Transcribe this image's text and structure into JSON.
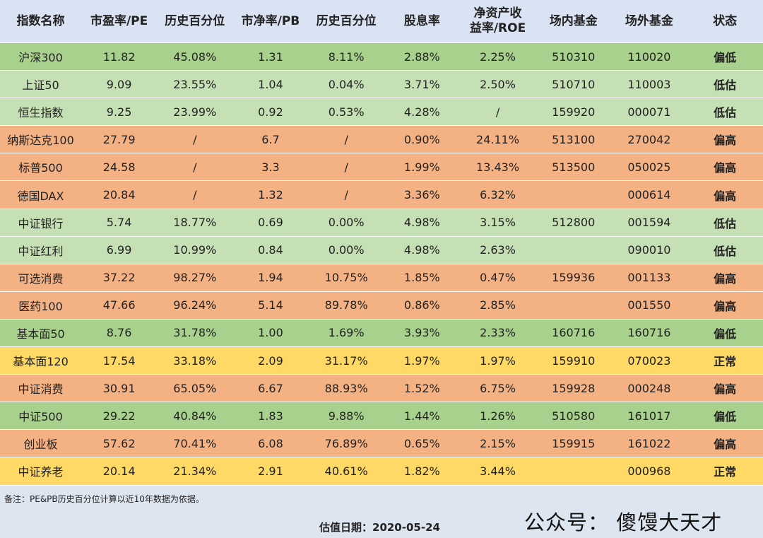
{
  "table": {
    "header": [
      "指数名称",
      "市盈率/PE",
      "历史百分位",
      "市净率/PB",
      "历史百分位",
      "股息率",
      "净资产收益率/ROE",
      "场内基金",
      "场外基金",
      "状态"
    ],
    "rows": [
      {
        "color": "#a9d18e",
        "cells": [
          "沪深300",
          "11.82",
          "45.08%",
          "1.31",
          "8.11%",
          "2.88%",
          "2.25%",
          "510310",
          "110020",
          "偏低"
        ]
      },
      {
        "color": "#c5e0b4",
        "cells": [
          "上证50",
          "9.09",
          "23.55%",
          "1.04",
          "0.04%",
          "3.71%",
          "2.50%",
          "510710",
          "110003",
          "低估"
        ]
      },
      {
        "color": "#c5e0b4",
        "cells": [
          "恒生指数",
          "9.25",
          "23.99%",
          "0.92",
          "0.53%",
          "4.28%",
          "/",
          "159920",
          "000071",
          "低估"
        ]
      },
      {
        "color": "#f4b183",
        "cells": [
          "纳斯达克100",
          "27.79",
          "/",
          "6.7",
          "/",
          "0.90%",
          "24.11%",
          "513100",
          "270042",
          "偏高"
        ]
      },
      {
        "color": "#f4b183",
        "cells": [
          "标普500",
          "24.58",
          "/",
          "3.3",
          "/",
          "1.99%",
          "13.43%",
          "513500",
          "050025",
          "偏高"
        ]
      },
      {
        "color": "#f4b183",
        "cells": [
          "德国DAX",
          "20.84",
          "/",
          "1.32",
          "/",
          "3.36%",
          "6.32%",
          null,
          "000614",
          "偏高"
        ]
      },
      {
        "color": "#c5e0b4",
        "cells": [
          "中证银行",
          "5.74",
          "18.77%",
          "0.69",
          "0.00%",
          "4.98%",
          "3.15%",
          "512800",
          "001594",
          "低估"
        ]
      },
      {
        "color": "#c5e0b4",
        "cells": [
          "中证红利",
          "6.99",
          "10.99%",
          "0.84",
          "0.00%",
          "4.98%",
          "2.63%",
          null,
          "090010",
          "低估"
        ]
      },
      {
        "color": "#f4b183",
        "cells": [
          "可选消费",
          "37.22",
          "98.27%",
          "1.94",
          "10.75%",
          "1.85%",
          "0.47%",
          "159936",
          "001133",
          "偏高"
        ]
      },
      {
        "color": "#f4b183",
        "cells": [
          "医药100",
          "47.66",
          "96.24%",
          "5.14",
          "89.78%",
          "0.86%",
          "2.85%",
          null,
          "001550",
          "偏高"
        ]
      },
      {
        "color": "#a9d18e",
        "cells": [
          "基本面50",
          "8.76",
          "31.78%",
          "1.00",
          "1.69%",
          "3.93%",
          "2.33%",
          "160716",
          "160716",
          "偏低"
        ]
      },
      {
        "color": "#ffd966",
        "cells": [
          "基本面120",
          "17.54",
          "33.18%",
          "2.09",
          "31.17%",
          "1.97%",
          "1.97%",
          "159910",
          "070023",
          "正常"
        ]
      },
      {
        "color": "#f4b183",
        "cells": [
          "中证消费",
          "30.91",
          "65.05%",
          "6.67",
          "88.93%",
          "1.52%",
          "6.75%",
          "159928",
          "000248",
          "偏高"
        ]
      },
      {
        "color": "#a9d18e",
        "cells": [
          "中证500",
          "29.22",
          "40.84%",
          "1.83",
          "9.88%",
          "1.44%",
          "1.26%",
          "510580",
          "161017",
          "偏低"
        ]
      },
      {
        "color": "#f4b183",
        "cells": [
          "创业板",
          "57.62",
          "70.41%",
          "6.08",
          "76.89%",
          "0.65%",
          "2.15%",
          "159915",
          "161022",
          "偏高"
        ]
      },
      {
        "color": "#ffd966",
        "cells": [
          "中证养老",
          "20.14",
          "21.34%",
          "2.91",
          "40.61%",
          "1.82%",
          "3.44%",
          null,
          "000968",
          "正常"
        ]
      }
    ]
  },
  "footer": {
    "note": "备注：PE&PB历史百分位计算以近10年数据为依据。",
    "date": "估值日期：2020-05-24",
    "account": "公众号： 傻馒大天才"
  }
}
